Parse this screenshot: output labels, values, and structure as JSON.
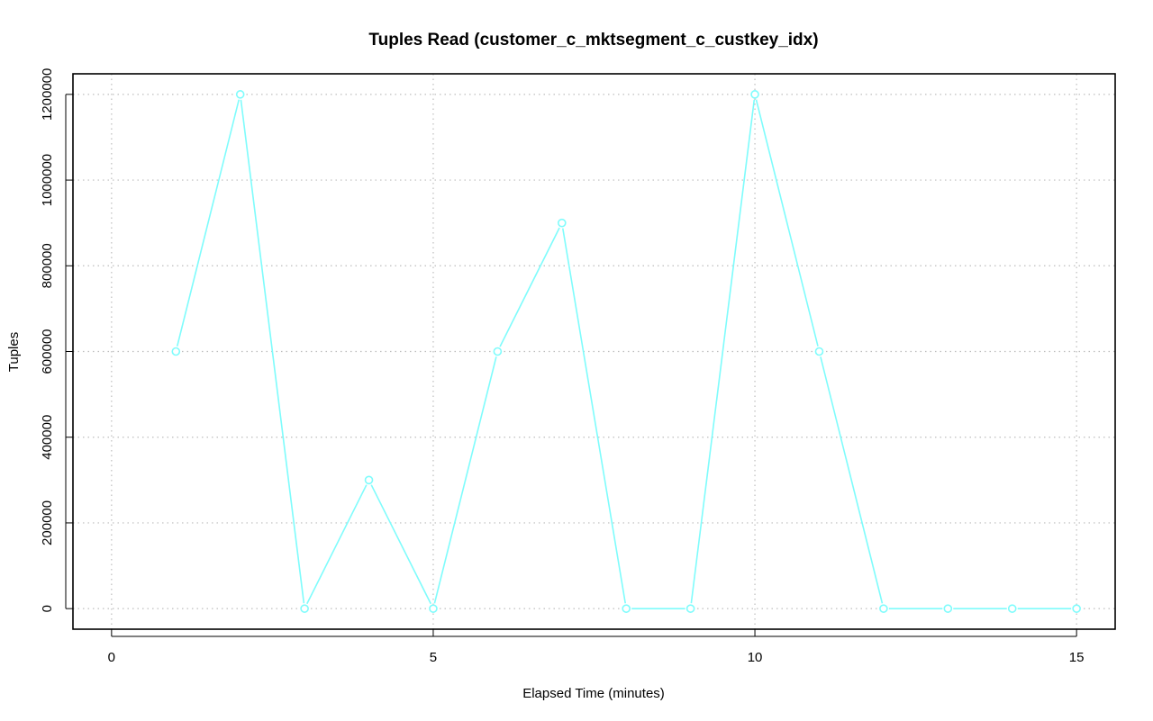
{
  "chart_data": {
    "type": "line",
    "title": "Tuples Read (customer_c_mktsegment_c_custkey_idx)",
    "xlabel": "Elapsed Time (minutes)",
    "ylabel": "Tuples",
    "xlim": [
      -0.6,
      15.6
    ],
    "ylim": [
      -48000,
      1248000
    ],
    "x_ticks": [
      0,
      5,
      10,
      15
    ],
    "y_ticks": [
      0,
      200000,
      400000,
      600000,
      800000,
      1000000,
      1200000
    ],
    "x_tick_labels": [
      "0",
      "5",
      "10",
      "15"
    ],
    "y_tick_labels": [
      "0",
      "200000",
      "400000",
      "600000",
      "800000",
      "1000000",
      "1200000"
    ],
    "grid": true,
    "legend": "none",
    "series": [
      {
        "color": "#7ffcfc",
        "x": [
          1,
          2,
          3,
          4,
          5,
          6,
          7,
          8,
          9,
          10,
          11,
          12,
          13,
          14,
          15
        ],
        "values": [
          600000,
          1200000,
          0,
          300000,
          0,
          600000,
          900000,
          0,
          0,
          1200000,
          600000,
          0,
          0,
          0,
          0
        ]
      }
    ]
  }
}
